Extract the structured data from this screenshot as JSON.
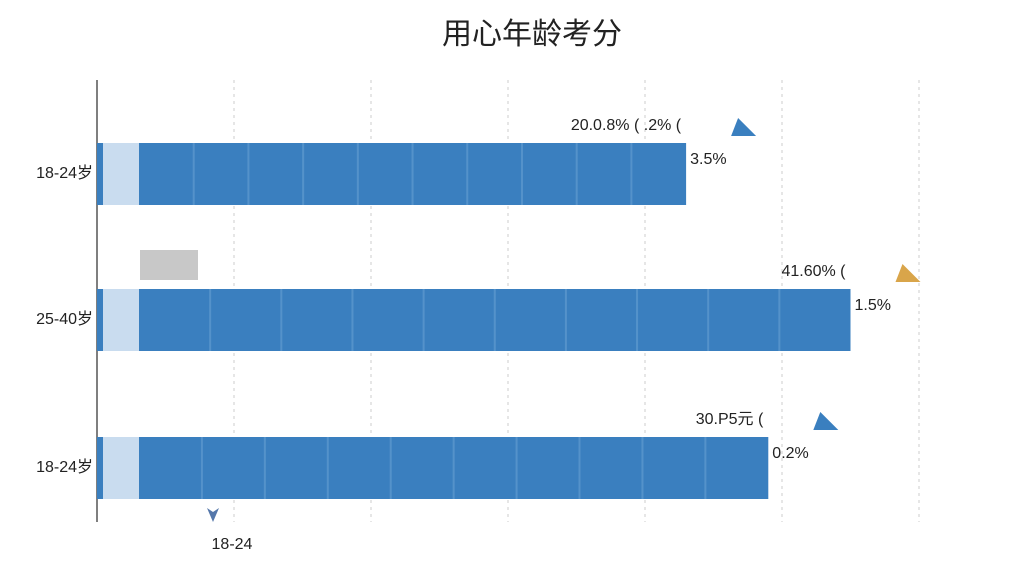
{
  "chart_data": {
    "type": "hbar",
    "title": "用心年龄考分",
    "categories": [
      "18-24岁",
      "25-40岁",
      "18-24岁"
    ],
    "values": [
      43,
      55,
      49
    ],
    "color": "#3a7fbf",
    "xlim": [
      0,
      60
    ],
    "xticks": [
      10,
      20,
      30,
      40,
      50,
      60
    ],
    "grid": true,
    "annotations": [
      [
        "20.0.8% ( .2% (",
        "3.5%"
      ],
      [
        "41.60% (",
        "1.5%"
      ],
      [
        "30.P5元 (",
        "0.2%"
      ]
    ],
    "pointer_label": "18-24"
  }
}
